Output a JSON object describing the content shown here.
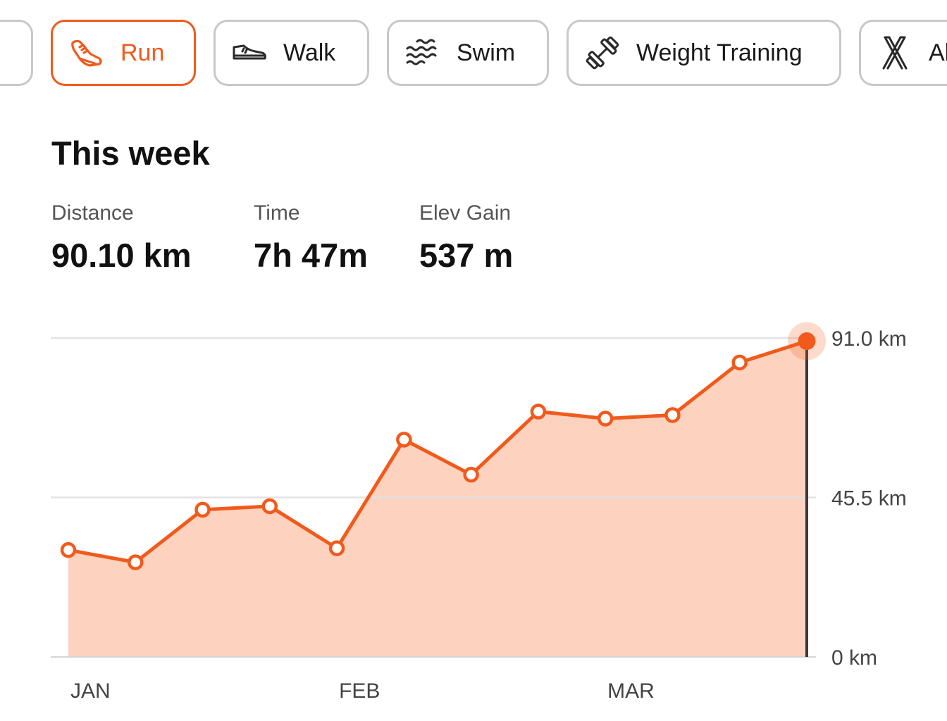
{
  "activity_tabs": [
    {
      "label": "",
      "icon": "partial-tab",
      "active": false
    },
    {
      "label": "Run",
      "icon": "running-shoe-icon",
      "active": true
    },
    {
      "label": "Walk",
      "icon": "sneaker-icon",
      "active": false
    },
    {
      "label": "Swim",
      "icon": "waves-icon",
      "active": false
    },
    {
      "label": "Weight Training",
      "icon": "dumbbell-icon",
      "active": false
    },
    {
      "label": "Al",
      "icon": "skis-icon",
      "active": false
    }
  ],
  "summary": {
    "title": "This week",
    "stats": [
      {
        "label": "Distance",
        "value": "90.10 km"
      },
      {
        "label": "Time",
        "value": "7h 47m"
      },
      {
        "label": "Elev Gain",
        "value": "537 m"
      }
    ]
  },
  "colors": {
    "accent": "#f15a1c",
    "fill": "#fdd3bf",
    "grid": "#e0e0e0",
    "marker_line": "#3b3b3b"
  },
  "chart_data": {
    "type": "area",
    "y_tick_labels": [
      "91.0 km",
      "45.5 km",
      "0 km"
    ],
    "y_ticks": [
      91.0,
      45.5,
      0
    ],
    "x_labels": [
      {
        "label": "JAN",
        "index": 0
      },
      {
        "label": "FEB",
        "index": 4
      },
      {
        "label": "MAR",
        "index": 8
      }
    ],
    "ylim": [
      0,
      91.0
    ],
    "series": [
      {
        "values": [
          30.5,
          27.0,
          42.0,
          43.0,
          31.0,
          62.0,
          52.0,
          70.0,
          68.0,
          69.0,
          84.0,
          90.1
        ]
      }
    ],
    "selected_index": 11
  }
}
